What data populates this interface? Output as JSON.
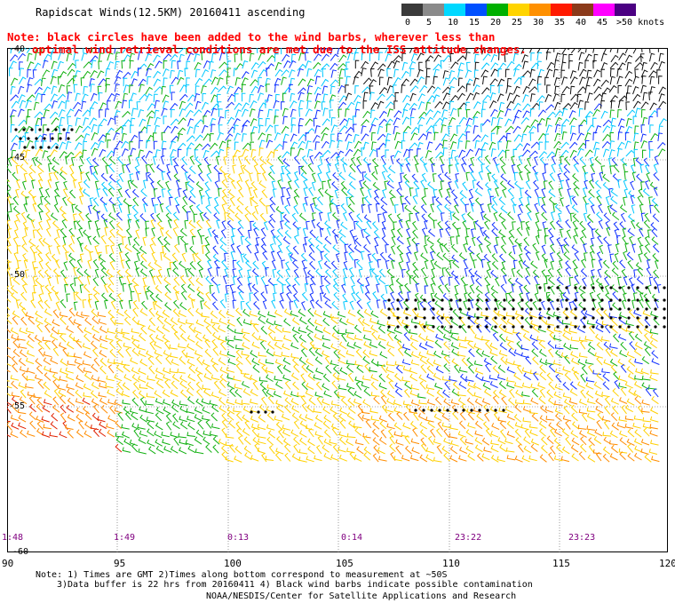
{
  "header": {
    "title": "Rapidscat Winds(12.5KM) 20160411 ascending",
    "note_line1": "Note: black circles have been added to the wind barbs, wherever less than",
    "note_line2": "optimal wind retrieval conditions are met due to the ISS attitude changes."
  },
  "legend": {
    "labels": [
      "0",
      "5",
      "10",
      "15",
      "20",
      "25",
      "30",
      "35",
      "40",
      "45",
      ">50 knots"
    ],
    "colors": [
      "#3a3a3a",
      "#8a8a8a",
      "#00d8ff",
      "#0050ff",
      "#00b000",
      "#ffd400",
      "#ff9000",
      "#ff1a00",
      "#8b3a1a",
      "#ff00ff",
      "#4b0082"
    ]
  },
  "axes": {
    "lat_labels": [
      "-40",
      "-45",
      "-50",
      "-55",
      "-60"
    ],
    "lon_labels": [
      "90",
      "95",
      "100",
      "105",
      "110",
      "115",
      "120"
    ],
    "time_labels": [
      "1:48",
      "1:49",
      "0:13",
      "0:14",
      "23:22",
      "23:23"
    ]
  },
  "footer": {
    "line1": "Note: 1) Times are GMT 2)Times along bottom correspond to measurement at ~50S",
    "line2": "3)Data buffer is 22 hrs from 20160411 4) Black wind barbs indicate possible contamination",
    "line3": "NOAA/NESDIS/Center for Satellite Applications and Research"
  }
}
